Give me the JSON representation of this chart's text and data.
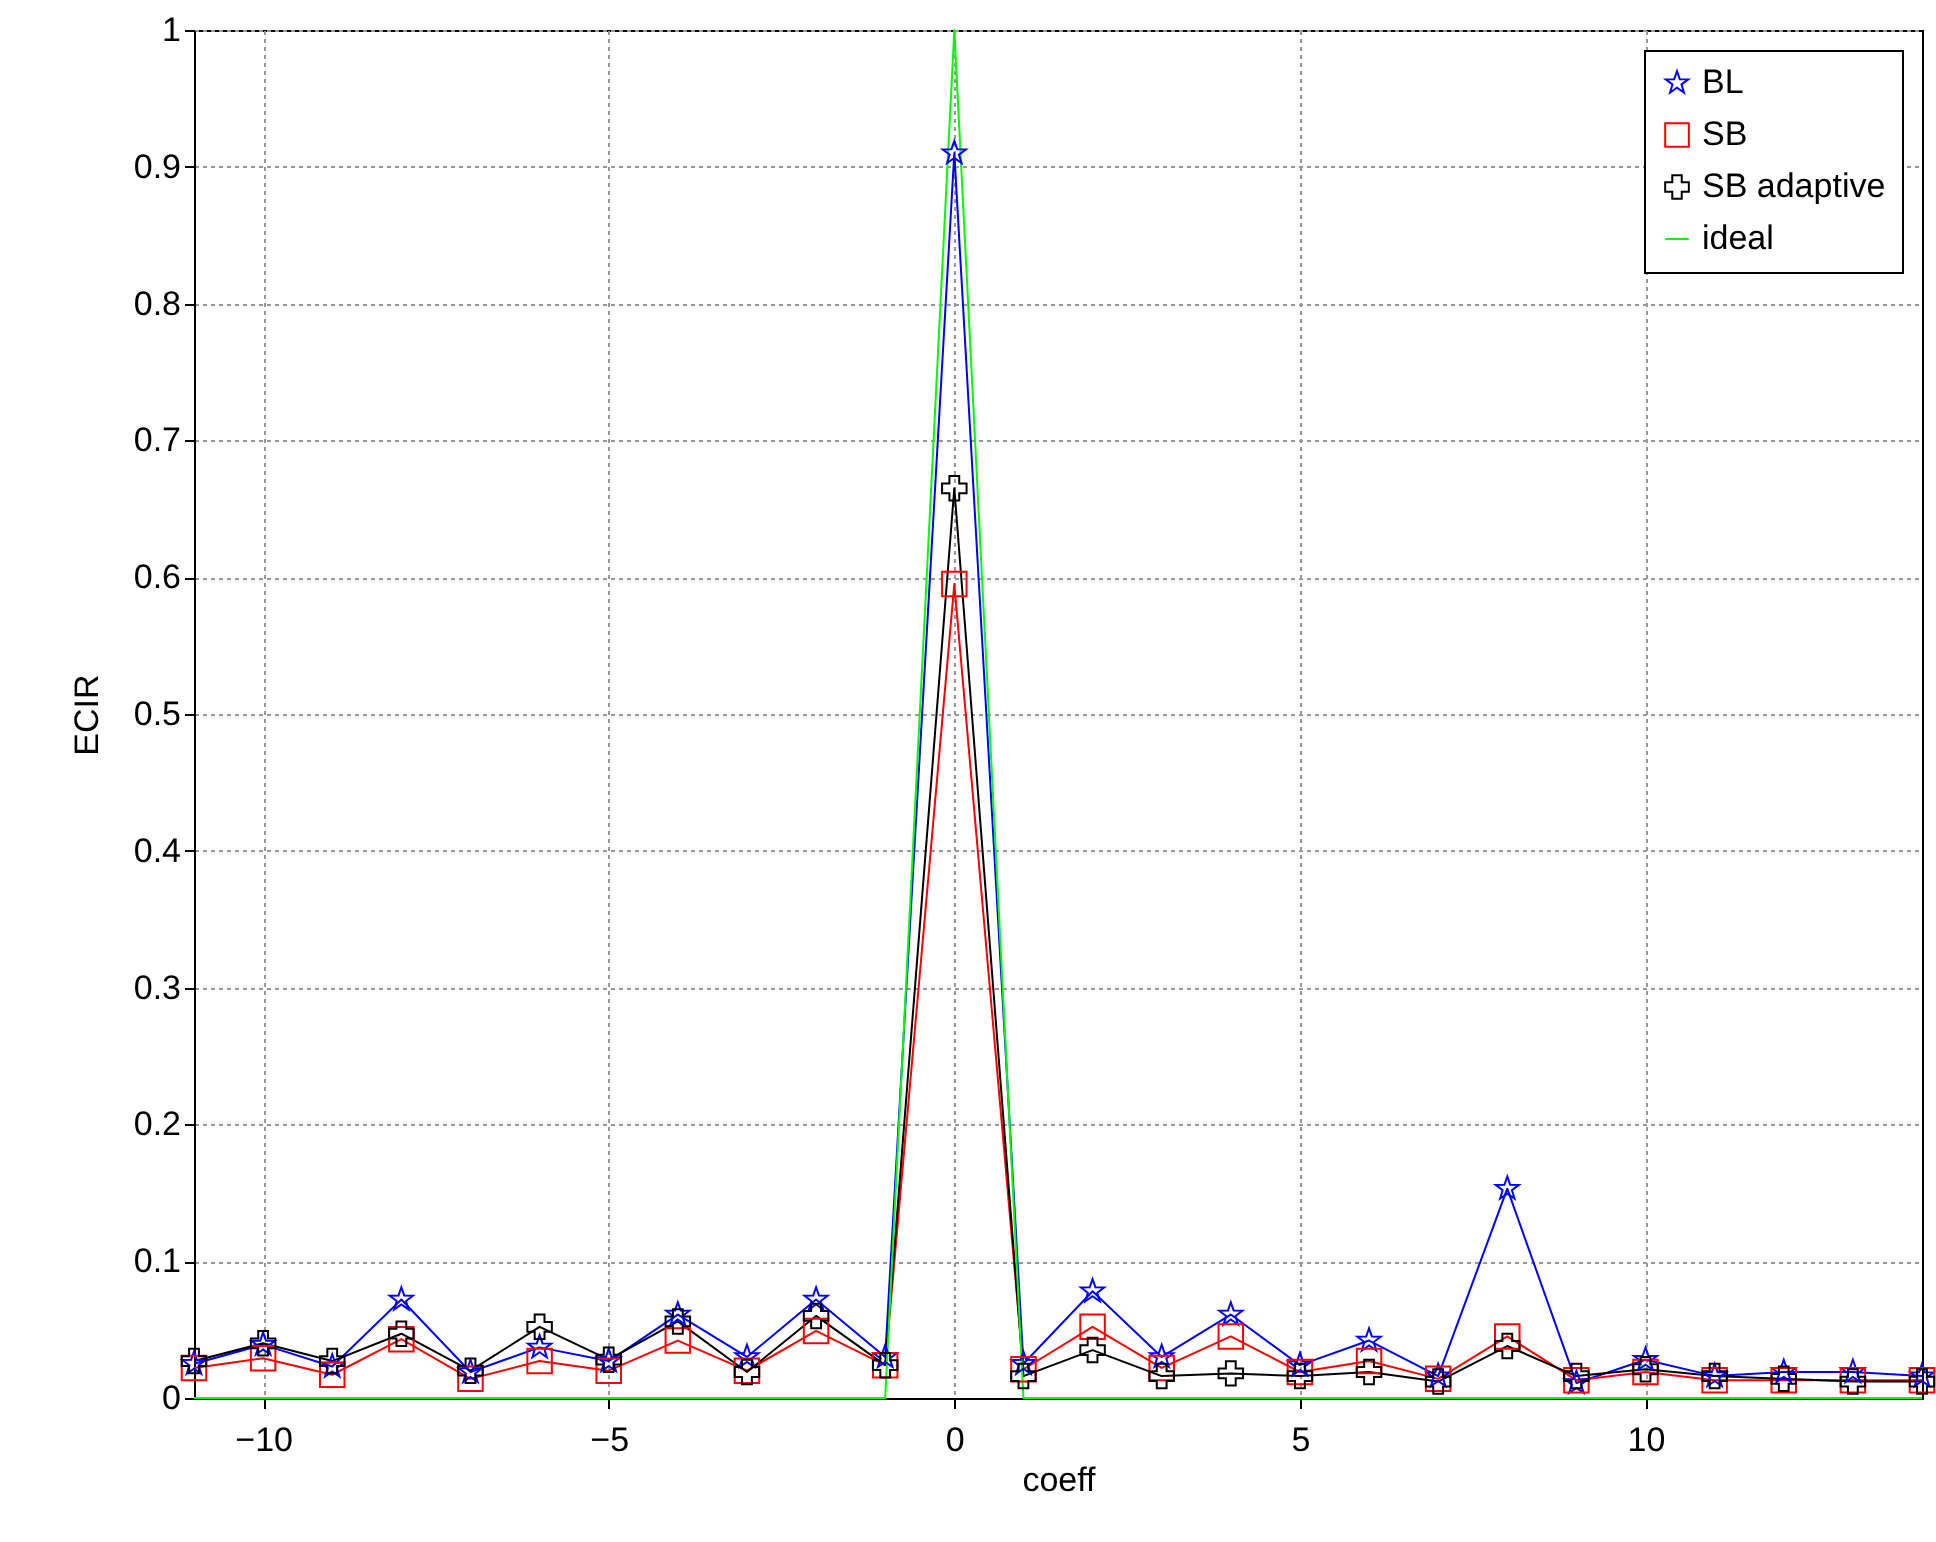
{
  "chart_data": {
    "type": "line",
    "xlabel": "coeff",
    "ylabel": "ECIR",
    "x": [
      -11,
      -10,
      -9,
      -8,
      -7,
      -6,
      -5,
      -4,
      -3,
      -2,
      -1,
      0,
      1,
      2,
      3,
      4,
      5,
      6,
      7,
      8,
      9,
      10,
      11,
      12,
      13,
      14
    ],
    "series": [
      {
        "name": "BL",
        "color": "#0000ff",
        "marker": "star",
        "values": [
          0.025,
          0.039,
          0.023,
          0.072,
          0.019,
          0.037,
          0.027,
          0.061,
          0.03,
          0.072,
          0.03,
          0.91,
          0.025,
          0.078,
          0.03,
          0.061,
          0.024,
          0.042,
          0.016,
          0.153,
          0.011,
          0.028,
          0.016,
          0.019,
          0.019,
          0.016
        ]
      },
      {
        "name": "SB",
        "color": "#ff0000",
        "marker": "square",
        "values": [
          0.022,
          0.029,
          0.017,
          0.043,
          0.014,
          0.027,
          0.02,
          0.042,
          0.02,
          0.049,
          0.024,
          0.595,
          0.021,
          0.052,
          0.022,
          0.045,
          0.019,
          0.027,
          0.014,
          0.045,
          0.013,
          0.019,
          0.013,
          0.013,
          0.013,
          0.013
        ]
      },
      {
        "name": "SB adaptive",
        "color": "#000000",
        "marker": "cross",
        "values": [
          0.027,
          0.04,
          0.027,
          0.047,
          0.02,
          0.052,
          0.028,
          0.056,
          0.019,
          0.06,
          0.024,
          0.665,
          0.016,
          0.035,
          0.016,
          0.018,
          0.016,
          0.019,
          0.012,
          0.038,
          0.016,
          0.021,
          0.016,
          0.014,
          0.012,
          0.012
        ]
      },
      {
        "name": "ideal",
        "color": "#00ff00",
        "marker": "none",
        "values": [
          0,
          0,
          0,
          0,
          0,
          0,
          0,
          0,
          0,
          0,
          0,
          1,
          0,
          0,
          0,
          0,
          0,
          0,
          0,
          0,
          0,
          0,
          0,
          0,
          0,
          0
        ]
      }
    ],
    "xlim": [
      -11,
      14
    ],
    "xticks": [
      -10,
      -5,
      0,
      5,
      10
    ],
    "ylim": [
      0,
      1
    ],
    "yticks": [
      0,
      0.1,
      0.2,
      0.3,
      0.4,
      0.5,
      0.6,
      0.7,
      0.8,
      0.9,
      1
    ],
    "grid": true,
    "legend": "top right"
  }
}
